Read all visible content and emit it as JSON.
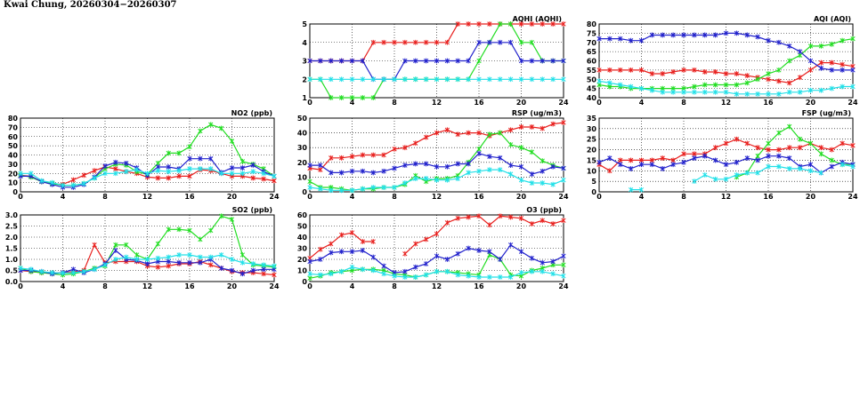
{
  "page": {
    "title": "Kwai Chung, 20260304−20260307"
  },
  "colors": {
    "red": "#e8201e",
    "green": "#22dd22",
    "blue": "#2222cc",
    "cyan": "#22e0e8",
    "grid": "#000000"
  },
  "chart_data": [
    {
      "id": "no2",
      "type": "line",
      "title": "NO2 (ppb)",
      "xlim": [
        0,
        24
      ],
      "ylim": [
        0,
        80
      ],
      "xticks": [
        0,
        4,
        8,
        12,
        16,
        20,
        24
      ],
      "yticks": [
        0,
        10,
        20,
        30,
        40,
        50,
        60,
        70,
        80
      ],
      "grid": true,
      "series": [
        {
          "color": "red",
          "values": [
            18,
            17,
            11,
            9,
            8,
            13,
            18,
            23,
            27,
            25,
            22,
            20,
            16,
            15,
            15,
            17,
            17,
            24,
            23,
            20,
            17,
            17,
            15,
            14,
            12
          ]
        },
        {
          "color": "green",
          "values": [
            18,
            16,
            11,
            9,
            7,
            7,
            9,
            15,
            25,
            30,
            29,
            22,
            19,
            31,
            42,
            42,
            49,
            66,
            73,
            69,
            55,
            33,
            30,
            25,
            17
          ]
        },
        {
          "color": "blue",
          "values": [
            17,
            17,
            11,
            8,
            5,
            5,
            8,
            16,
            28,
            32,
            31,
            26,
            18,
            27,
            27,
            25,
            36,
            36,
            36,
            21,
            26,
            26,
            29,
            22,
            17
          ]
        },
        {
          "color": "cyan",
          "values": [
            20,
            20,
            12,
            10,
            7,
            7,
            9,
            15,
            20,
            20,
            22,
            24,
            20,
            23,
            22,
            23,
            25,
            25,
            25,
            20,
            20,
            20,
            22,
            20,
            17
          ]
        }
      ]
    },
    {
      "id": "so2",
      "type": "line",
      "title": "SO2 (ppb)",
      "xlim": [
        0,
        24
      ],
      "ylim": [
        0,
        3
      ],
      "xticks": [
        0,
        4,
        8,
        12,
        16,
        20,
        24
      ],
      "yticks": [
        0,
        0.5,
        1,
        1.5,
        2,
        2.5,
        3
      ],
      "ytick_labels": [
        "0.0",
        "0.5",
        "1.0",
        "1.5",
        "2.0",
        "2.5",
        "3.0"
      ],
      "grid": true,
      "series": [
        {
          "color": "red",
          "values": [
            0.5,
            0.45,
            0.4,
            0.38,
            0.4,
            0.45,
            0.5,
            1.65,
            0.85,
            0.9,
            0.9,
            0.9,
            0.7,
            0.65,
            0.7,
            0.8,
            0.8,
            0.9,
            0.75,
            0.6,
            0.45,
            0.4,
            0.4,
            0.35,
            0.3
          ]
        },
        {
          "color": "green",
          "values": [
            0.6,
            0.45,
            0.4,
            0.35,
            0.3,
            0.35,
            0.45,
            0.6,
            0.7,
            1.65,
            1.65,
            1.2,
            1.0,
            1.7,
            2.35,
            2.35,
            2.3,
            1.9,
            2.3,
            2.95,
            2.8,
            1.2,
            0.75,
            0.7,
            0.65
          ]
        },
        {
          "color": "blue",
          "values": [
            0.5,
            0.5,
            0.45,
            0.35,
            0.4,
            0.55,
            0.4,
            0.55,
            0.8,
            1.4,
            1.0,
            0.95,
            0.8,
            0.9,
            0.9,
            0.85,
            0.85,
            0.85,
            1.0,
            0.6,
            0.5,
            0.35,
            0.5,
            0.55,
            0.55
          ]
        },
        {
          "color": "cyan",
          "values": [
            0.6,
            0.55,
            0.45,
            0.4,
            0.38,
            0.4,
            0.45,
            0.55,
            0.75,
            1.0,
            1.1,
            1.0,
            1.0,
            1.05,
            1.1,
            1.2,
            1.2,
            1.1,
            1.1,
            1.2,
            1.0,
            0.85,
            0.8,
            0.75,
            0.7
          ]
        }
      ]
    },
    {
      "id": "aqhi",
      "type": "line",
      "title": "AQHI (AQHI)",
      "xlim": [
        0,
        24
      ],
      "ylim": [
        1,
        5
      ],
      "xticks": [
        0,
        4,
        8,
        12,
        16,
        20,
        24
      ],
      "yticks": [
        1,
        2,
        3,
        4,
        5
      ],
      "grid": true,
      "series": [
        {
          "color": "red",
          "values": [
            3,
            3,
            3,
            3,
            3,
            3,
            4,
            4,
            4,
            4,
            4,
            4,
            4,
            4,
            5,
            5,
            5,
            5,
            5,
            5,
            5,
            5,
            5,
            5,
            5
          ]
        },
        {
          "color": "green",
          "values": [
            2,
            2,
            1,
            1,
            1,
            1,
            1,
            2,
            2,
            2,
            2,
            2,
            2,
            2,
            2,
            2,
            3,
            4,
            5,
            5,
            4,
            4,
            3,
            3,
            3
          ]
        },
        {
          "color": "blue",
          "values": [
            3,
            3,
            3,
            3,
            3,
            3,
            2,
            2,
            2,
            3,
            3,
            3,
            3,
            3,
            3,
            3,
            4,
            4,
            4,
            4,
            3,
            3,
            3,
            3,
            3
          ]
        },
        {
          "color": "cyan",
          "values": [
            2,
            2,
            2,
            2,
            2,
            2,
            2,
            2,
            2,
            2,
            2,
            2,
            2,
            2,
            2,
            2,
            2,
            2,
            2,
            2,
            2,
            2,
            2,
            2,
            2
          ]
        }
      ]
    },
    {
      "id": "rsp",
      "type": "line",
      "title": "RSP (ug/m3)",
      "xlim": [
        0,
        24
      ],
      "ylim": [
        0,
        50
      ],
      "xticks": [
        0,
        4,
        8,
        12,
        16,
        20,
        24
      ],
      "yticks": [
        0,
        10,
        20,
        30,
        40,
        50
      ],
      "grid": true,
      "series": [
        {
          "color": "red",
          "values": [
            16,
            15,
            23,
            23,
            24,
            25,
            25,
            25,
            29,
            30,
            33,
            37,
            40,
            42,
            39,
            40,
            40,
            38,
            40,
            42,
            44,
            44,
            43,
            46,
            47
          ]
        },
        {
          "color": "green",
          "values": [
            7,
            3,
            3,
            2,
            1,
            2,
            2,
            3,
            3,
            5,
            11,
            7,
            9,
            9,
            11,
            20,
            29,
            39,
            40,
            32,
            30,
            27,
            21,
            18,
            16
          ]
        },
        {
          "color": "blue",
          "values": [
            18,
            18,
            13,
            13,
            14,
            14,
            13,
            14,
            16,
            18,
            19,
            19,
            17,
            17,
            19,
            19,
            26,
            24,
            23,
            18,
            17,
            12,
            14,
            17,
            16
          ]
        },
        {
          "color": "cyan",
          "values": [
            3,
            2,
            1,
            1,
            1,
            2,
            3,
            3,
            3,
            6,
            9,
            9,
            8,
            8,
            9,
            13,
            14,
            15,
            15,
            12,
            8,
            6,
            6,
            5,
            8
          ]
        }
      ]
    },
    {
      "id": "o3",
      "type": "line",
      "title": "O3 (ppb)",
      "xlim": [
        0,
        24
      ],
      "ylim": [
        0,
        60
      ],
      "xticks": [
        0,
        4,
        8,
        12,
        16,
        20,
        24
      ],
      "yticks": [
        0,
        10,
        20,
        30,
        40,
        50,
        60
      ],
      "grid": true,
      "series": [
        {
          "color": "red",
          "values": [
            21,
            29,
            34,
            42,
            44,
            36,
            36,
            null,
            null,
            25,
            34,
            38,
            43,
            53,
            57,
            58,
            59,
            51,
            59,
            58,
            57,
            52,
            55,
            52,
            55
          ]
        },
        {
          "color": "green",
          "values": [
            3,
            5,
            8,
            9,
            10,
            11,
            11,
            10,
            7,
            6,
            4,
            6,
            9,
            9,
            8,
            7,
            6,
            24,
            20,
            6,
            5,
            10,
            12,
            15,
            15
          ]
        },
        {
          "color": "blue",
          "values": [
            18,
            20,
            26,
            27,
            27,
            28,
            22,
            14,
            8,
            9,
            13,
            16,
            23,
            20,
            25,
            30,
            28,
            27,
            20,
            33,
            27,
            21,
            17,
            18,
            23
          ]
        },
        {
          "color": "cyan",
          "values": [
            7,
            6,
            7,
            9,
            13,
            11,
            10,
            7,
            5,
            4,
            4,
            6,
            9,
            9,
            6,
            5,
            4,
            4,
            4,
            4,
            8,
            9,
            9,
            7,
            5
          ]
        }
      ]
    },
    {
      "id": "aqi",
      "type": "line",
      "title": "AQI (AQI)",
      "xlim": [
        0,
        24
      ],
      "ylim": [
        40,
        80
      ],
      "xticks": [
        0,
        4,
        8,
        12,
        16,
        20,
        24
      ],
      "yticks": [
        40,
        45,
        50,
        55,
        60,
        65,
        70,
        75,
        80
      ],
      "grid": true,
      "series": [
        {
          "color": "red",
          "values": [
            55,
            55,
            55,
            55,
            55,
            53,
            53,
            54,
            55,
            55,
            54,
            54,
            53,
            53,
            52,
            51,
            50,
            49,
            48,
            51,
            55,
            59,
            59,
            58,
            57
          ]
        },
        {
          "color": "green",
          "values": [
            47,
            46,
            46,
            45,
            45,
            45,
            45,
            45,
            45,
            46,
            47,
            47,
            47,
            47,
            48,
            50,
            53,
            55,
            60,
            63,
            68,
            68,
            69,
            71,
            72
          ]
        },
        {
          "color": "blue",
          "values": [
            72,
            72,
            72,
            71,
            71,
            74,
            74,
            74,
            74,
            74,
            74,
            74,
            75,
            75,
            74,
            73,
            71,
            70,
            68,
            65,
            60,
            56,
            55,
            55,
            55
          ]
        },
        {
          "color": "cyan",
          "values": [
            49,
            48,
            47,
            46,
            45,
            44,
            43,
            43,
            43,
            43,
            43,
            43,
            43,
            42,
            42,
            42,
            42,
            42,
            43,
            43,
            44,
            44,
            45,
            46,
            46
          ]
        }
      ]
    },
    {
      "id": "fsp",
      "type": "line",
      "title": "FSP (ug/m3)",
      "xlim": [
        0,
        24
      ],
      "ylim": [
        0,
        35
      ],
      "xticks": [
        0,
        4,
        8,
        12,
        16,
        20,
        24
      ],
      "yticks": [
        0,
        5,
        10,
        15,
        20,
        25,
        30,
        35
      ],
      "grid": true,
      "series": [
        {
          "color": "red",
          "values": [
            13,
            10,
            15,
            15,
            15,
            15,
            16,
            15,
            18,
            18,
            18,
            21,
            23,
            25,
            23,
            21,
            20,
            20,
            21,
            21,
            23,
            21,
            20,
            23,
            22
          ]
        },
        {
          "color": "green",
          "values": [
            null,
            null,
            null,
            null,
            null,
            null,
            null,
            null,
            null,
            null,
            null,
            null,
            null,
            7,
            9,
            17,
            23,
            28,
            31,
            25,
            23,
            18,
            15,
            13,
            13
          ]
        },
        {
          "color": "blue",
          "values": [
            14,
            16,
            13,
            11,
            13,
            13,
            11,
            13,
            14,
            16,
            17,
            15,
            13,
            14,
            16,
            15,
            17,
            17,
            16,
            12,
            13,
            9,
            12,
            14,
            13
          ]
        },
        {
          "color": "cyan",
          "values": [
            null,
            null,
            null,
            1,
            1,
            null,
            null,
            null,
            null,
            5,
            8,
            6,
            6,
            8,
            9,
            9,
            12,
            12,
            11,
            11,
            10,
            9,
            null,
            13,
            12
          ]
        }
      ]
    }
  ]
}
